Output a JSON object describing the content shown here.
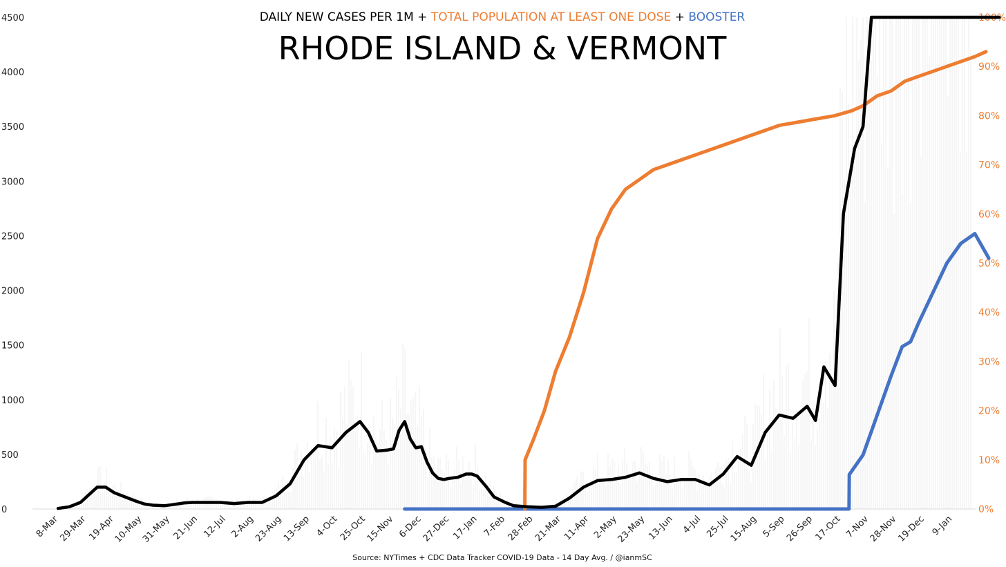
{
  "colors": {
    "cases": "#000000",
    "dose": "#ED7D31",
    "booster": "#4472C4",
    "bars": "#eeeeee"
  },
  "header": {
    "subtitle_part1": "DAILY NEW CASES PER 1M",
    "plus1": "+",
    "subtitle_part2": "TOTAL POPULATION AT LEAST ONE DOSE",
    "plus2": "+",
    "subtitle_part3": "BOOSTER",
    "title": "RHODE ISLAND & VERMONT"
  },
  "source": "Source: NYTimes + CDC Data Tracker COVID-19 Data - 14 Day Avg. / @ianmSC",
  "chart_data": {
    "type": "line",
    "title": "RHODE ISLAND & VERMONT",
    "subtitle": "DAILY NEW CASES PER 1M + TOTAL POPULATION AT LEAST ONE DOSE + BOOSTER",
    "x_ticks": [
      "8-Mar",
      "29-Mar",
      "19-Apr",
      "10-May",
      "31-May",
      "21-Jun",
      "12-Jul",
      "2-Aug",
      "23-Aug",
      "13-Sep",
      "4-Oct",
      "25-Oct",
      "15-Nov",
      "6-Dec",
      "27-Dec",
      "17-Jan",
      "7-Feb",
      "28-Feb",
      "21-Mar",
      "11-Apr",
      "2-May",
      "23-May",
      "13-Jun",
      "4-Jul",
      "25-Jul",
      "15-Aug",
      "5-Sep",
      "26-Sep",
      "17-Oct",
      "7-Nov",
      "28-Nov",
      "19-Dec",
      "9-Jan"
    ],
    "y_left": {
      "ylim": [
        0,
        4500
      ],
      "ticks": [
        "0",
        "500",
        "1000",
        "1500",
        "2000",
        "2500",
        "3000",
        "3500",
        "4000",
        "4500"
      ]
    },
    "y_right": {
      "ylim": [
        0,
        100
      ],
      "ticks": [
        "0%",
        "10%",
        "20%",
        "30%",
        "40%",
        "50%",
        "60%",
        "70%",
        "80%",
        "90%",
        "100%"
      ]
    },
    "series": [
      {
        "name": "DAILY NEW CASES PER 1M",
        "axis": "left",
        "x": [
          0.2,
          0.6,
          1.0,
          1.3,
          1.6,
          1.9,
          2.2,
          2.6,
          3.0,
          3.3,
          3.6,
          4.0,
          4.3,
          4.7,
          5.0,
          5.5,
          6.0,
          6.5,
          7.0,
          7.5,
          8.0,
          8.5,
          9.0,
          9.5,
          10.0,
          10.5,
          11.0,
          11.3,
          11.6,
          12.0,
          12.2,
          12.4,
          12.6,
          12.8,
          13.0,
          13.2,
          13.4,
          13.6,
          13.8,
          14.0,
          14.2,
          14.5,
          14.8,
          15.0,
          15.2,
          15.5,
          15.8,
          16.2,
          16.5,
          17.0,
          17.5,
          18.0,
          18.5,
          19.0,
          19.5,
          20.0,
          20.5,
          21.0,
          21.5,
          22.0,
          22.5,
          23.0,
          23.5,
          24.0,
          24.5,
          25.0,
          25.5,
          26.0,
          26.5,
          27.0,
          27.3,
          27.6,
          28.0,
          28.3,
          28.7,
          29.0,
          29.3,
          29.6,
          29.8,
          30.0,
          30.2,
          30.4,
          30.6,
          30.8,
          31.0,
          31.2,
          31.35,
          31.5,
          31.65,
          31.8,
          31.9,
          32.0,
          32.2,
          32.35,
          32.5,
          32.6,
          32.75,
          32.85,
          33.0,
          33.15,
          33.3,
          33.45,
          33.6,
          33.75,
          33.82,
          33.88
        ],
        "y": [
          5,
          20,
          60,
          130,
          200,
          200,
          150,
          110,
          70,
          45,
          35,
          30,
          40,
          55,
          60,
          60,
          60,
          50,
          60,
          60,
          120,
          230,
          450,
          580,
          560,
          700,
          800,
          700,
          530,
          540,
          550,
          720,
          800,
          640,
          560,
          570,
          430,
          330,
          280,
          270,
          280,
          290,
          320,
          320,
          300,
          210,
          110,
          60,
          30,
          20,
          15,
          25,
          100,
          200,
          260,
          270,
          290,
          330,
          280,
          250,
          270,
          270,
          220,
          320,
          480,
          400,
          700,
          860,
          830,
          940,
          810,
          1300,
          1130,
          2700,
          3300,
          3500,
          4500,
          4500,
          4500,
          4500,
          4500,
          4500,
          4500,
          4500,
          4500,
          4500,
          4500,
          4500,
          4500,
          4500,
          4500,
          4500,
          4500,
          4500,
          4500,
          4500,
          4500,
          4500,
          4500,
          4500,
          4500,
          4500,
          4500,
          4500,
          4500,
          4500
        ]
      },
      {
        "name": "TOTAL POPULATION AT LEAST ONE DOSE",
        "axis": "right",
        "x": [
          16.9,
          16.91,
          17.2,
          17.6,
          18.0,
          18.5,
          19.0,
          19.5,
          20.0,
          20.5,
          21.0,
          21.5,
          22.0,
          22.5,
          23.0,
          24.0,
          25.0,
          26.0,
          27.0,
          28.0,
          28.6,
          29.0,
          29.5,
          30.0,
          30.5,
          31.0,
          31.5,
          32.0,
          32.5,
          33.0,
          33.4
        ],
        "y": [
          0,
          10,
          14,
          20,
          28,
          35,
          44,
          55,
          61,
          65,
          67,
          69,
          70,
          71,
          72,
          74,
          76,
          78,
          79,
          80,
          81,
          82,
          84,
          85,
          87,
          88,
          89,
          90,
          91,
          92,
          93
        ]
      },
      {
        "name": "BOOSTER",
        "axis": "right",
        "x": [
          12.6,
          28.5,
          28.51,
          29.0,
          29.5,
          30.0,
          30.4,
          30.7,
          31.0,
          31.5,
          32.0,
          32.5,
          33.0,
          33.5
        ],
        "y": [
          0,
          0,
          7,
          11,
          19,
          27,
          33,
          34,
          38,
          44,
          50,
          54,
          56,
          51
        ]
      }
    ]
  }
}
